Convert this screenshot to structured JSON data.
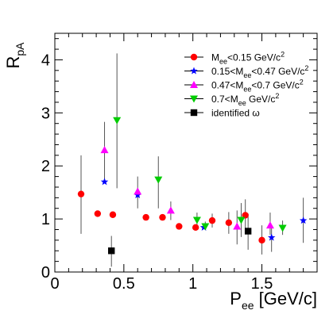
{
  "chart_data": {
    "type": "scatter",
    "xlabel": "P",
    "xlabel_sub": "ee",
    "xlabel_unit": " [GeV/c]",
    "ylabel": "R",
    "ylabel_sub": "pA",
    "xlim": [
      0,
      1.9
    ],
    "ylim": [
      0,
      4.5
    ],
    "x_ticks": [
      0,
      0.5,
      1,
      1.5
    ],
    "x_tick_labels": [
      "0",
      "0.5",
      "1",
      "1.5"
    ],
    "y_ticks": [
      0,
      1,
      2,
      3,
      4
    ],
    "y_tick_labels": [
      "0",
      "1",
      "2",
      "3",
      "4"
    ],
    "grid": false,
    "legend_position": "top-right",
    "series": [
      {
        "name": "M_ee<0.15 GeV/c^2",
        "legend": [
          {
            "t": "M"
          },
          {
            "t": "ee",
            "sub": true
          },
          {
            "t": "<0.15 GeV/c"
          },
          {
            "t": "2",
            "sup": true
          }
        ],
        "marker": "circle",
        "color": "#ff0000",
        "points": [
          {
            "x": 0.19,
            "y": 1.47,
            "lo": 0.72,
            "hi": 2.2
          },
          {
            "x": 0.31,
            "y": 1.1,
            "lo": 1.1,
            "hi": 1.1
          },
          {
            "x": 0.42,
            "y": 1.08,
            "lo": 1.08,
            "hi": 1.08
          },
          {
            "x": 0.66,
            "y": 1.03,
            "lo": 1.03,
            "hi": 1.03
          },
          {
            "x": 0.78,
            "y": 1.03,
            "lo": 1.03,
            "hi": 1.03
          },
          {
            "x": 0.9,
            "y": 0.86,
            "lo": 0.86,
            "hi": 0.86
          },
          {
            "x": 1.02,
            "y": 0.84,
            "lo": 0.84,
            "hi": 0.84
          },
          {
            "x": 1.14,
            "y": 0.97,
            "lo": 0.84,
            "hi": 1.1
          },
          {
            "x": 1.26,
            "y": 0.93,
            "lo": 0.72,
            "hi": 1.13
          },
          {
            "x": 1.38,
            "y": 1.07,
            "lo": 0.8,
            "hi": 1.37
          },
          {
            "x": 1.5,
            "y": 0.6,
            "lo": 0.33,
            "hi": 0.88
          }
        ]
      },
      {
        "name": "0.15<M_ee<0.47 GeV/c^2",
        "legend": [
          {
            "t": "0.15<M"
          },
          {
            "t": "ee",
            "sub": true
          },
          {
            "t": "<0.47 GeV/c"
          },
          {
            "t": "2",
            "sup": true
          }
        ],
        "marker": "star",
        "color": "#0000ff",
        "points": [
          {
            "x": 0.36,
            "y": 1.7,
            "lo": 1.7,
            "hi": 1.7
          },
          {
            "x": 0.6,
            "y": 1.45,
            "lo": 1.2,
            "hi": 1.58
          },
          {
            "x": 1.08,
            "y": 0.84,
            "lo": 0.84,
            "hi": 0.84
          },
          {
            "x": 1.57,
            "y": 0.65,
            "lo": 0.38,
            "hi": 0.88
          },
          {
            "x": 1.8,
            "y": 0.97,
            "lo": 0.55,
            "hi": 1.4
          }
        ]
      },
      {
        "name": "0.47<M_ee<0.7 GeV/c^2",
        "legend": [
          {
            "t": "0.47<M"
          },
          {
            "t": "ee",
            "sub": true
          },
          {
            "t": "<0.7 GeV/c"
          },
          {
            "t": "2",
            "sup": true
          }
        ],
        "marker": "triangle-up",
        "color": "#ff00ff",
        "points": [
          {
            "x": 0.36,
            "y": 2.3,
            "lo": 1.72,
            "hi": 2.83
          },
          {
            "x": 0.6,
            "y": 1.52,
            "lo": 1.4,
            "hi": 1.8
          },
          {
            "x": 0.84,
            "y": 1.16,
            "lo": 0.98,
            "hi": 1.33
          },
          {
            "x": 1.32,
            "y": 0.86,
            "lo": 0.52,
            "hi": 1.16
          },
          {
            "x": 1.56,
            "y": 0.88,
            "lo": 0.7,
            "hi": 1.12
          }
        ]
      },
      {
        "name": "0.7<M_ee GeV/c^2",
        "legend": [
          {
            "t": "0.7<M"
          },
          {
            "t": "ee",
            "sub": true
          },
          {
            "t": " GeV/c"
          },
          {
            "t": "2",
            "sup": true
          }
        ],
        "marker": "triangle-down",
        "color": "#00cc00",
        "points": [
          {
            "x": 0.45,
            "y": 2.86,
            "lo": 1.58,
            "hi": 4.12
          },
          {
            "x": 0.75,
            "y": 1.74,
            "lo": 1.2,
            "hi": 2.18
          },
          {
            "x": 1.03,
            "y": 0.98,
            "lo": 0.85,
            "hi": 1.12
          },
          {
            "x": 1.09,
            "y": 0.86,
            "lo": 0.8,
            "hi": 0.95
          },
          {
            "x": 1.35,
            "y": 0.98,
            "lo": 0.66,
            "hi": 1.3
          },
          {
            "x": 1.65,
            "y": 0.83,
            "lo": 0.7,
            "hi": 0.97
          }
        ]
      },
      {
        "name": "identified ω",
        "legend": [
          {
            "t": "identified ω"
          }
        ],
        "marker": "square",
        "color": "#000000",
        "points": [
          {
            "x": 0.41,
            "y": 0.4,
            "lo": 0.1,
            "hi": 0.68
          },
          {
            "x": 1.4,
            "y": 0.77,
            "lo": 0.42,
            "hi": 1.1
          }
        ]
      }
    ]
  }
}
